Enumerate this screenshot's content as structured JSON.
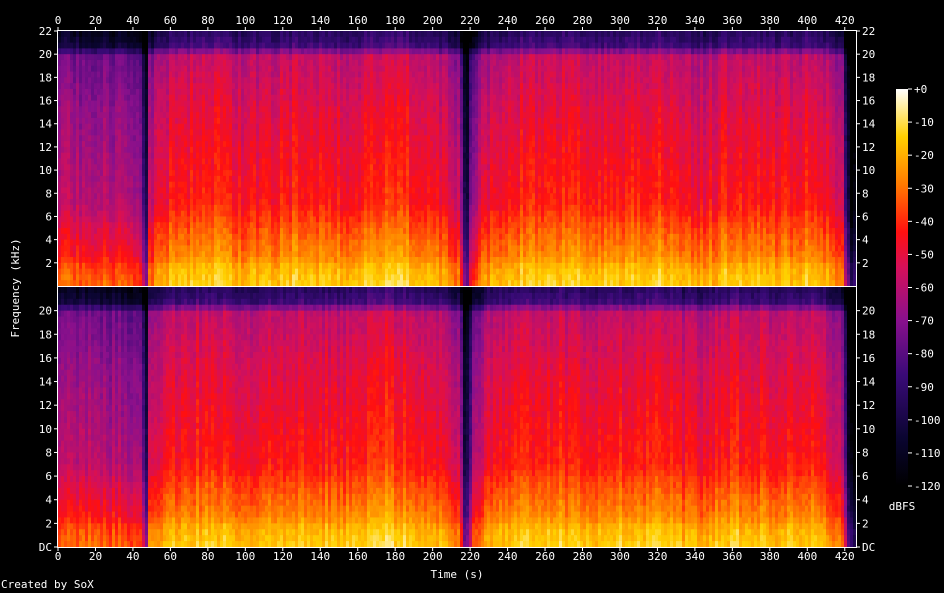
{
  "chart_data": {
    "type": "heatmap",
    "subtype": "spectrogram",
    "channels": 2,
    "xlabel": "Time (s)",
    "ylabel": "Frequency (kHz)",
    "xlim": [
      0,
      426
    ],
    "ylim": [
      0,
      22
    ],
    "x_ticks": [
      0,
      20,
      40,
      60,
      80,
      100,
      120,
      140,
      160,
      180,
      200,
      220,
      240,
      260,
      280,
      300,
      320,
      340,
      360,
      380,
      400,
      420
    ],
    "y_ticks": [
      "22",
      "20",
      "18",
      "16",
      "14",
      "12",
      "10",
      "8",
      "6",
      "4",
      "2"
    ],
    "y_ticks_bottom": [
      "22",
      "20",
      "18",
      "16",
      "14",
      "12",
      "10",
      "8",
      "6",
      "4",
      "2",
      "DC"
    ],
    "colorbar": {
      "label": "dBFS",
      "range": [
        -120,
        0
      ],
      "ticks": [
        "+0",
        "-10",
        "-20",
        "-30",
        "-40",
        "-50",
        "-60",
        "-70",
        "-80",
        "-90",
        "-100",
        "-110",
        "-120"
      ]
    },
    "level_profile_dbfs": [
      {
        "t": 0,
        "level": -60
      },
      {
        "t": 20,
        "level": -62
      },
      {
        "t": 44,
        "level": -64
      },
      {
        "t": 46,
        "level": -110
      },
      {
        "t": 48,
        "level": -58
      },
      {
        "t": 60,
        "level": -45
      },
      {
        "t": 85,
        "level": -42
      },
      {
        "t": 100,
        "level": -48
      },
      {
        "t": 130,
        "level": -42
      },
      {
        "t": 150,
        "level": -46
      },
      {
        "t": 175,
        "level": -40
      },
      {
        "t": 200,
        "level": -44
      },
      {
        "t": 214,
        "level": -60
      },
      {
        "t": 217,
        "level": -115
      },
      {
        "t": 220,
        "level": -70
      },
      {
        "t": 226,
        "level": -52
      },
      {
        "t": 240,
        "level": -44
      },
      {
        "t": 260,
        "level": -42
      },
      {
        "t": 290,
        "level": -44
      },
      {
        "t": 320,
        "level": -42
      },
      {
        "t": 340,
        "level": -50
      },
      {
        "t": 360,
        "level": -42
      },
      {
        "t": 385,
        "level": -46
      },
      {
        "t": 405,
        "level": -42
      },
      {
        "t": 418,
        "level": -60
      },
      {
        "t": 422,
        "level": -120
      },
      {
        "t": 426,
        "level": -120
      }
    ],
    "band_boost_khz": [
      {
        "f": 0,
        "boost": 30
      },
      {
        "f": 1.5,
        "boost": 26
      },
      {
        "f": 2.5,
        "boost": 18
      },
      {
        "f": 5,
        "boost": 10
      },
      {
        "f": 7,
        "boost": 2
      },
      {
        "f": 15,
        "boost": -6
      },
      {
        "f": 20,
        "boost": -14
      },
      {
        "f": 20.5,
        "boost": -40
      },
      {
        "f": 22,
        "boost": -50
      }
    ]
  },
  "footer": "Created by SoX"
}
